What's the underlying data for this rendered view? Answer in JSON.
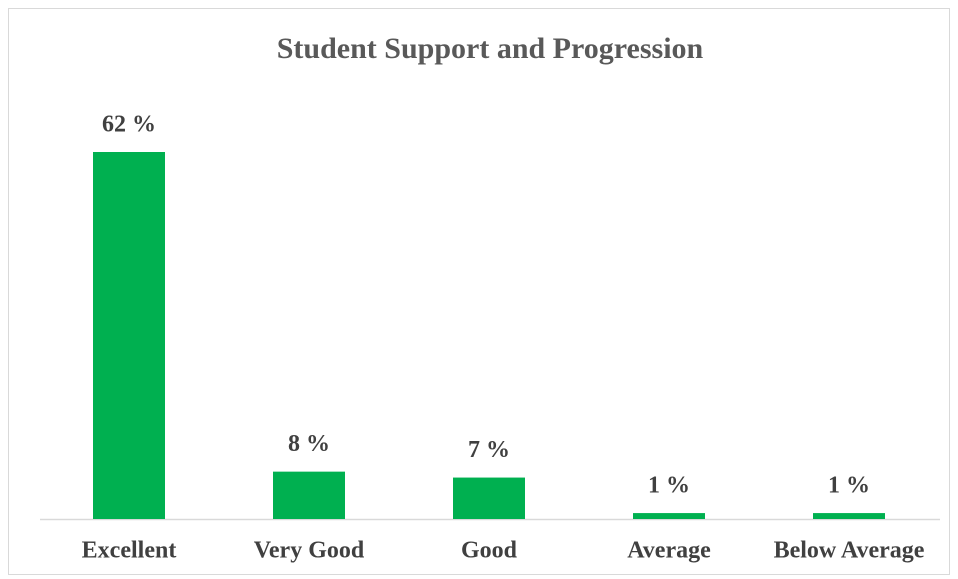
{
  "chart_data": {
    "type": "bar",
    "title": "Student Support and Progression",
    "categories": [
      "Excellent",
      "Very Good",
      "Good",
      "Average",
      "Below Average"
    ],
    "values": [
      62,
      8,
      7,
      1,
      1
    ],
    "value_labels": [
      "62 %",
      "8 %",
      "7 %",
      "1 %",
      "1 %"
    ],
    "color": "#00b050"
  }
}
